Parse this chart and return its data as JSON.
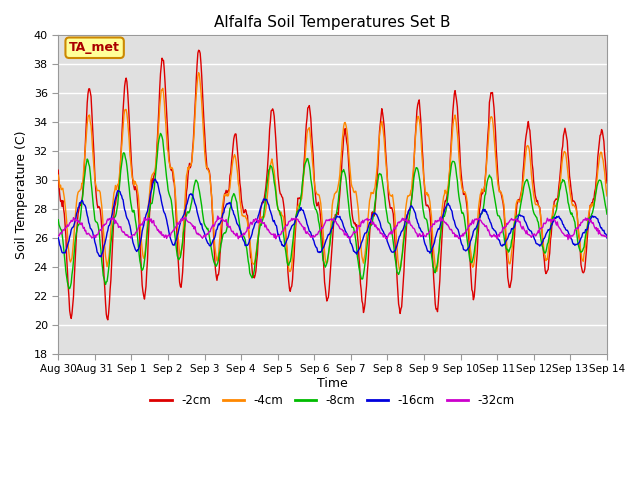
{
  "title": "Alfalfa Soil Temperatures Set B",
  "xlabel": "Time",
  "ylabel": "Soil Temperature (C)",
  "ylim": [
    18,
    40
  ],
  "xtick_labels": [
    "Aug 30",
    "Aug 31",
    "Sep 1",
    "Sep 2",
    "Sep 3",
    "Sep 4",
    "Sep 5",
    "Sep 6",
    "Sep 7",
    "Sep 8",
    "Sep 9",
    "Sep 10",
    "Sep 11",
    "Sep 12",
    "Sep 13",
    "Sep 14"
  ],
  "series_colors": {
    "-2cm": "#dd0000",
    "-4cm": "#ff8800",
    "-8cm": "#00bb00",
    "-16cm": "#0000dd",
    "-32cm": "#cc00cc"
  },
  "annotation": {
    "text": "TA_met",
    "fontsize": 9,
    "facecolor": "#ffff99",
    "edgecolor": "#cc8800",
    "textcolor": "#aa0000"
  },
  "background_color": "#e0e0e0",
  "grid_color": "#ffffff",
  "peak_vals_2cm": [
    36.0,
    36.5,
    37.0,
    38.7,
    39.1,
    32.0,
    35.5,
    35.0,
    33.0,
    35.0,
    35.5,
    36.1,
    36.2,
    33.5
  ],
  "trough_vals_2cm": [
    21.0,
    19.7,
    21.5,
    22.5,
    23.0,
    23.5,
    22.5,
    22.0,
    21.0,
    21.0,
    20.5,
    22.0,
    22.0,
    23.5
  ],
  "peak_vals_4cm": [
    34.5,
    34.5,
    35.0,
    36.6,
    37.5,
    30.5,
    31.5,
    34.0,
    34.0,
    34.0,
    34.5,
    34.5,
    34.5,
    32.0
  ],
  "trough_vals_4cm": [
    24.5,
    24.0,
    24.5,
    25.0,
    24.5,
    24.5,
    23.5,
    24.0,
    24.5,
    24.0,
    23.5,
    24.0,
    24.0,
    24.5
  ],
  "peak_vals_8cm": [
    31.0,
    31.5,
    32.0,
    33.5,
    29.0,
    29.0,
    31.5,
    31.5,
    30.5,
    30.5,
    31.0,
    31.5,
    30.0,
    30.0
  ],
  "trough_vals_8cm": [
    22.5,
    22.5,
    23.5,
    24.5,
    24.5,
    23.0,
    24.0,
    24.5,
    23.0,
    23.5,
    23.5,
    24.0,
    25.0,
    25.0
  ],
  "peak_vals_16cm": [
    28.7,
    28.5,
    29.7,
    30.2,
    28.3,
    28.5,
    28.8,
    27.5,
    27.5,
    27.8,
    28.3,
    28.3,
    27.7,
    27.5
  ],
  "trough_vals_16cm": [
    25.0,
    24.7,
    25.0,
    25.5,
    25.5,
    25.5,
    25.5,
    25.0,
    25.0,
    25.0,
    25.0,
    25.0,
    25.5,
    25.5
  ],
  "base_32cm": 26.7,
  "amp_32cm": 0.6,
  "phase_lag_32cm": 0.3
}
